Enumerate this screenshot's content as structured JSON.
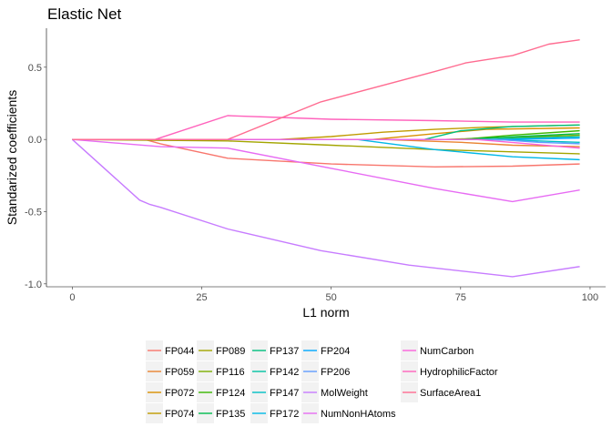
{
  "chart_data": {
    "type": "line",
    "title": "Elastic Net",
    "xlabel": "L1 norm",
    "ylabel": "Standarized coefficients",
    "xlim": [
      -5,
      103
    ],
    "ylim": [
      -1.02,
      0.77
    ],
    "xticks": [
      0,
      25,
      50,
      75,
      100
    ],
    "yticks": [
      -1.0,
      -0.5,
      0.0,
      0.5
    ],
    "ytick_labels": [
      "-1.0",
      "-0.5",
      "0.0",
      "0.5"
    ],
    "grid": false,
    "legend_position": "bottom",
    "series": [
      {
        "name": "FP044",
        "color": "#F8766D",
        "x": [
          0,
          14,
          17,
          30,
          50,
          70,
          85,
          98
        ],
        "y": [
          0,
          0,
          -0.03,
          -0.13,
          -0.17,
          -0.19,
          -0.185,
          -0.17
        ]
      },
      {
        "name": "FP059",
        "color": "#EA8331",
        "x": [
          0,
          60,
          75,
          85,
          98
        ],
        "y": [
          0,
          0,
          -0.02,
          -0.04,
          -0.05
        ]
      },
      {
        "name": "FP072",
        "color": "#D89000",
        "x": [
          0,
          58,
          70,
          80,
          98
        ],
        "y": [
          0,
          0,
          0.04,
          0.07,
          0.08
        ]
      },
      {
        "name": "FP074",
        "color": "#C09B00",
        "x": [
          0,
          40,
          50,
          60,
          70,
          80,
          98
        ],
        "y": [
          0,
          0,
          0.02,
          0.05,
          0.07,
          0.085,
          0.1
        ]
      },
      {
        "name": "FP089",
        "color": "#A3A500",
        "x": [
          0,
          30,
          50,
          70,
          80,
          98
        ],
        "y": [
          0,
          -0.01,
          -0.04,
          -0.07,
          -0.08,
          -0.1
        ]
      },
      {
        "name": "FP116",
        "color": "#7CAE00",
        "x": [
          0,
          72,
          80,
          90,
          98
        ],
        "y": [
          0,
          0,
          0.01,
          0.02,
          0.03
        ]
      },
      {
        "name": "FP124",
        "color": "#39B600",
        "x": [
          0,
          75,
          85,
          98
        ],
        "y": [
          0,
          0,
          0.03,
          0.06
        ]
      },
      {
        "name": "FP135",
        "color": "#00BB4E",
        "x": [
          0,
          76,
          86,
          98
        ],
        "y": [
          0,
          0,
          0.02,
          0.04
        ]
      },
      {
        "name": "FP137",
        "color": "#00BF7D",
        "x": [
          0,
          68,
          75,
          85,
          98
        ],
        "y": [
          0,
          0,
          0.06,
          0.09,
          0.1
        ]
      },
      {
        "name": "FP142",
        "color": "#00C1A3",
        "x": [
          0,
          80,
          88,
          98
        ],
        "y": [
          0,
          0,
          0.01,
          0.02
        ]
      },
      {
        "name": "FP147",
        "color": "#00BFC4",
        "x": [
          0,
          80,
          90,
          98
        ],
        "y": [
          0,
          0,
          -0.01,
          -0.02
        ]
      },
      {
        "name": "FP172",
        "color": "#00B8E7",
        "x": [
          0,
          55,
          70,
          85,
          98
        ],
        "y": [
          0,
          0,
          -0.07,
          -0.12,
          -0.14
        ]
      },
      {
        "name": "FP204",
        "color": "#00A9FF",
        "x": [
          0,
          85,
          98
        ],
        "y": [
          0,
          0,
          0.01
        ]
      },
      {
        "name": "FP206",
        "color": "#619CFF",
        "x": [
          0,
          82,
          90,
          98
        ],
        "y": [
          0,
          0,
          -0.02,
          -0.03
        ]
      },
      {
        "name": "MolWeight",
        "color": "#C77CFF",
        "x": [
          0,
          13,
          15,
          17,
          30,
          48,
          65,
          85,
          98
        ],
        "y": [
          0,
          -0.42,
          -0.45,
          -0.47,
          -0.62,
          -0.77,
          -0.87,
          -0.95,
          -0.88
        ]
      },
      {
        "name": "NumNonHAtoms",
        "color": "#E76BF3",
        "x": [
          0,
          17,
          30,
          50,
          70,
          85,
          98
        ],
        "y": [
          0,
          -0.05,
          -0.06,
          -0.2,
          -0.34,
          -0.43,
          -0.35
        ]
      },
      {
        "name": "NumCarbon",
        "color": "#FA62DB",
        "x": [
          0,
          78,
          88,
          98
        ],
        "y": [
          0,
          0,
          -0.03,
          -0.06
        ]
      },
      {
        "name": "HydrophilicFactor",
        "color": "#FF62BC",
        "x": [
          0,
          16,
          30,
          50,
          70,
          85,
          98
        ],
        "y": [
          0,
          0,
          0.165,
          0.14,
          0.13,
          0.12,
          0.12
        ]
      },
      {
        "name": "SurfaceArea1",
        "color": "#FF6C91",
        "x": [
          0,
          30,
          48,
          70,
          76,
          85,
          92,
          98
        ],
        "y": [
          0,
          0,
          0.26,
          0.47,
          0.53,
          0.58,
          0.66,
          0.69
        ]
      }
    ]
  }
}
